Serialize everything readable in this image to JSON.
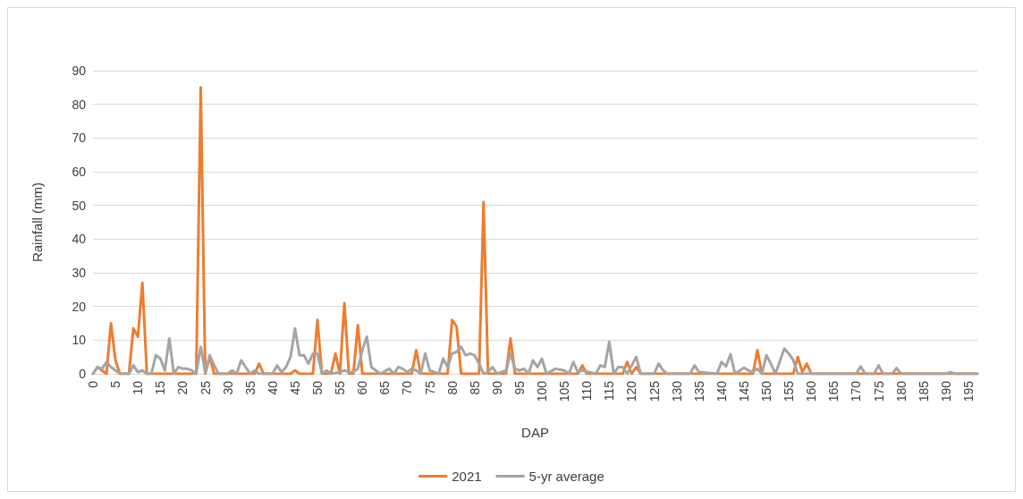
{
  "chart_data": {
    "type": "line",
    "xlabel": "DAP",
    "ylabel": "Rainfall (mm)",
    "xlim": [
      0,
      197
    ],
    "xticks": [
      0,
      5,
      10,
      15,
      20,
      25,
      30,
      35,
      40,
      45,
      50,
      55,
      60,
      65,
      70,
      75,
      80,
      85,
      90,
      95,
      100,
      105,
      110,
      115,
      120,
      125,
      130,
      135,
      140,
      145,
      150,
      155,
      160,
      165,
      170,
      175,
      180,
      185,
      190,
      195
    ],
    "ylim": [
      0,
      90
    ],
    "yticks": [
      0,
      10,
      20,
      30,
      40,
      50,
      60,
      70,
      80,
      90
    ],
    "grid": "y",
    "legend": "bottom",
    "marker": "none",
    "line_style": "solid",
    "series": [
      {
        "name": "2021",
        "color": "#ed7d31",
        "x": [
          0,
          1,
          2,
          3,
          4,
          5,
          6,
          8,
          9,
          10,
          11,
          12,
          23,
          24,
          25,
          26,
          27,
          36,
          37,
          38,
          44,
          45,
          46,
          49,
          50,
          51,
          53,
          54,
          55,
          56,
          57,
          58,
          59,
          60,
          71,
          72,
          73,
          79,
          80,
          81,
          82,
          86,
          87,
          88,
          92,
          93,
          94,
          108,
          109,
          110,
          118,
          119,
          120,
          121,
          122,
          147,
          148,
          149,
          156,
          157,
          158,
          159,
          160,
          197
        ],
        "values": [
          0,
          2,
          1,
          0,
          15,
          4,
          0,
          0,
          13.5,
          11,
          27,
          0,
          0,
          85,
          0,
          5,
          0,
          0,
          3,
          0,
          0,
          1,
          0,
          0,
          16,
          0,
          0,
          6,
          0,
          21,
          0,
          0,
          14.5,
          0,
          0,
          7,
          0,
          0,
          16,
          14,
          0,
          0,
          51,
          0,
          0,
          10.5,
          0,
          0,
          2.5,
          0,
          0,
          3.5,
          0,
          2,
          0,
          0,
          7,
          0,
          0,
          5,
          0.5,
          3,
          0,
          0
        ]
      },
      {
        "name": "5-yr average",
        "color": "#a5a5a5",
        "x": [
          0,
          1,
          2,
          3,
          4,
          5,
          6,
          8,
          9,
          10,
          11,
          12,
          13,
          14,
          15,
          16,
          17,
          18,
          19,
          20,
          21,
          22,
          23,
          24,
          25,
          26,
          27,
          28,
          30,
          31,
          32,
          33,
          34,
          35,
          36,
          37,
          40,
          41,
          42,
          43,
          44,
          45,
          46,
          47,
          48,
          49,
          50,
          51,
          52,
          53,
          55,
          56,
          57,
          58,
          59,
          60,
          61,
          62,
          63,
          64,
          66,
          67,
          68,
          69,
          70,
          71,
          72,
          73,
          74,
          75,
          77,
          78,
          79,
          80,
          81,
          82,
          83,
          84,
          85,
          86,
          87,
          88,
          89,
          90,
          92,
          93,
          94,
          95,
          96,
          97,
          98,
          99,
          100,
          101,
          103,
          105,
          106,
          107,
          108,
          109,
          112,
          113,
          114,
          115,
          116,
          117,
          118,
          119,
          121,
          122,
          125,
          126,
          127,
          128,
          133,
          134,
          135,
          139,
          140,
          141,
          142,
          143,
          145,
          146,
          147,
          148,
          149,
          150,
          151,
          152,
          154,
          155,
          156,
          157,
          170,
          171,
          172,
          174,
          175,
          176,
          178,
          179,
          180,
          190,
          191,
          192,
          197
        ],
        "values": [
          0,
          2,
          1.5,
          3.5,
          2,
          1,
          0,
          0,
          2.5,
          0.5,
          1,
          0,
          0,
          5.5,
          4.5,
          1,
          10.5,
          0,
          2,
          1.5,
          1.5,
          1,
          0,
          8,
          0.5,
          5.5,
          2.5,
          0,
          0,
          1,
          0,
          4,
          2,
          0,
          1,
          0,
          0,
          2.5,
          0.5,
          2,
          5,
          13.5,
          5.5,
          5.5,
          3,
          6,
          6,
          0,
          1,
          0,
          0.5,
          1,
          0.5,
          0.5,
          1.5,
          7,
          11,
          2,
          1,
          0,
          1.5,
          0,
          2,
          1.5,
          0.5,
          1.5,
          1,
          0,
          6,
          1,
          0,
          4.5,
          2,
          6,
          6.5,
          8,
          5.5,
          6,
          5.5,
          3,
          0,
          0.5,
          2,
          0,
          1,
          6,
          1.5,
          1,
          1.5,
          0,
          4,
          2,
          4.5,
          0,
          1.5,
          1,
          0,
          3.5,
          0.5,
          1,
          0,
          2.5,
          2,
          9.5,
          0,
          2,
          2,
          0,
          5,
          0,
          0,
          3,
          1,
          0,
          0,
          2.5,
          0.5,
          0,
          3.5,
          2.2,
          5.8,
          0,
          1.8,
          1,
          0.5,
          1.5,
          0,
          5.5,
          3,
          0,
          7.5,
          6,
          4,
          0,
          0,
          2.2,
          0,
          0,
          2.5,
          0,
          0,
          1.7,
          0,
          0,
          0.5,
          0,
          0
        ]
      }
    ]
  }
}
